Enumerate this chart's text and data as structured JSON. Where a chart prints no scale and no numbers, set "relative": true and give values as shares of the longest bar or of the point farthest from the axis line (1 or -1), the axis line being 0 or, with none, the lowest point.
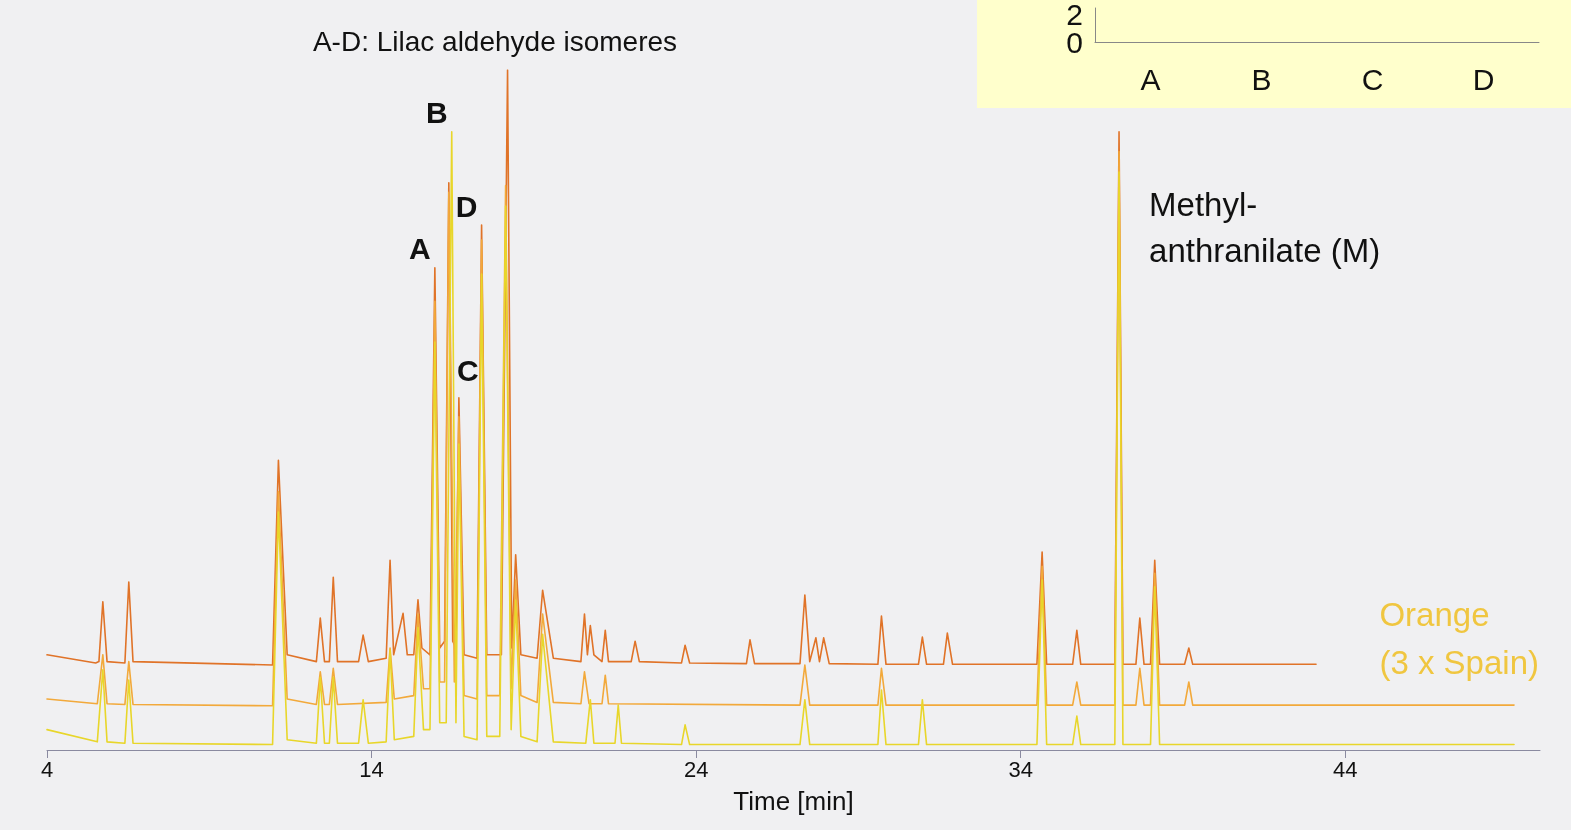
{
  "chart_data": [
    {
      "type": "line",
      "title": "A-D: Lilac aldehyde isomeres",
      "xlabel": "Time [min]",
      "relative": true,
      "xlim": [
        4,
        50
      ],
      "xticks": [
        4,
        14,
        24,
        34,
        44
      ],
      "grid": false,
      "marker": "none",
      "line_style": "solid",
      "annotations": [
        {
          "text": "A",
          "x": 15.95,
          "y": 0.709
        },
        {
          "text": "B",
          "x": 16.47,
          "y": 0.909
        },
        {
          "text": "C",
          "x": 16.69,
          "y": 0.518
        },
        {
          "text": "D",
          "x": 17.39,
          "y": 0.772
        },
        {
          "text": "Methyl-\nanthranilate (M)",
          "x": 37.03,
          "y": 0.909
        },
        "Orange\n(3 x Spain)"
      ],
      "series": [
        {
          "color": "#e07328",
          "x": [
            4,
            5.5,
            5.6,
            5.72,
            5.85,
            6.4,
            6.52,
            6.65,
            10.95,
            11.13,
            11.4,
            12.3,
            12.42,
            12.55,
            12.7,
            12.82,
            12.95,
            13.6,
            13.74,
            13.9,
            14.45,
            14.57,
            14.68,
            14.97,
            15.1,
            15.3,
            15.43,
            15.55,
            15.8,
            15.95,
            16.1,
            16.25,
            16.38,
            16.5,
            16.6,
            16.69,
            16.85,
            17.25,
            17.39,
            17.55,
            18.0,
            18.19,
            18.32,
            18.44,
            18.6,
            19.1,
            19.27,
            19.6,
            20.45,
            20.56,
            20.65,
            20.74,
            20.85,
            21.1,
            21.2,
            21.3,
            22.0,
            22.12,
            22.25,
            23.55,
            23.66,
            23.8,
            25.55,
            25.66,
            25.8,
            27.2,
            27.35,
            27.5,
            27.69,
            27.8,
            27.93,
            28.1,
            29.6,
            29.71,
            29.85,
            30.85,
            30.97,
            31.1,
            31.62,
            31.74,
            31.9,
            34.5,
            34.66,
            34.8,
            35.6,
            35.73,
            35.85,
            36.9,
            37.03,
            37.15,
            37.55,
            37.67,
            37.8,
            38.0,
            38.13,
            38.28,
            39.05,
            39.18,
            39.3,
            43.1
          ],
          "values": [
            0.14,
            0.128,
            0.13,
            0.218,
            0.13,
            0.128,
            0.247,
            0.13,
            0.125,
            0.426,
            0.14,
            0.13,
            0.194,
            0.13,
            0.13,
            0.254,
            0.13,
            0.13,
            0.169,
            0.13,
            0.135,
            0.279,
            0.14,
            0.201,
            0.14,
            0.14,
            0.221,
            0.15,
            0.14,
            0.709,
            0.15,
            0.16,
            0.834,
            0.16,
            0.15,
            0.518,
            0.14,
            0.135,
            0.772,
            0.14,
            0.14,
            1,
            0.15,
            0.287,
            0.14,
            0.135,
            0.235,
            0.135,
            0.13,
            0.2,
            0.14,
            0.183,
            0.14,
            0.13,
            0.176,
            0.13,
            0.13,
            0.16,
            0.13,
            0.128,
            0.154,
            0.128,
            0.127,
            0.162,
            0.127,
            0.127,
            0.228,
            0.13,
            0.165,
            0.13,
            0.165,
            0.127,
            0.126,
            0.197,
            0.126,
            0.126,
            0.166,
            0.126,
            0.126,
            0.172,
            0.126,
            0.126,
            0.291,
            0.126,
            0.126,
            0.176,
            0.126,
            0.126,
            0.909,
            0.126,
            0.126,
            0.194,
            0.126,
            0.126,
            0.279,
            0.126,
            0.126,
            0.15,
            0.126,
            0.126
          ]
        },
        {
          "color": "#f2a93b",
          "x": [
            4,
            5.55,
            5.72,
            5.85,
            6.4,
            6.52,
            6.65,
            10.95,
            11.13,
            11.4,
            12.3,
            12.42,
            12.55,
            12.7,
            12.82,
            12.95,
            14.45,
            14.57,
            14.7,
            15.3,
            15.43,
            15.6,
            15.8,
            15.95,
            16.1,
            16.25,
            16.38,
            16.55,
            16.69,
            16.85,
            17.25,
            17.39,
            17.55,
            17.95,
            18.13,
            18.3,
            18.44,
            18.6,
            19.1,
            19.27,
            19.6,
            20.45,
            20.56,
            20.7,
            21.1,
            21.2,
            21.3,
            27.2,
            27.35,
            27.5,
            29.6,
            29.71,
            29.85,
            34.5,
            34.66,
            34.8,
            35.6,
            35.73,
            35.85,
            36.9,
            37.03,
            37.15,
            37.55,
            37.67,
            37.8,
            38.0,
            38.13,
            38.28,
            39.05,
            39.18,
            39.3,
            49.2
          ],
          "values": [
            0.075,
            0.068,
            0.14,
            0.068,
            0.067,
            0.13,
            0.067,
            0.065,
            0.38,
            0.075,
            0.067,
            0.115,
            0.067,
            0.067,
            0.12,
            0.067,
            0.07,
            0.15,
            0.075,
            0.08,
            0.2,
            0.09,
            0.09,
            0.66,
            0.1,
            0.1,
            0.82,
            0.1,
            0.49,
            0.08,
            0.075,
            0.75,
            0.08,
            0.08,
            0.83,
            0.09,
            0.25,
            0.08,
            0.07,
            0.2,
            0.07,
            0.068,
            0.115,
            0.068,
            0.068,
            0.11,
            0.068,
            0.066,
            0.125,
            0.066,
            0.066,
            0.12,
            0.066,
            0.066,
            0.27,
            0.066,
            0.066,
            0.1,
            0.066,
            0.066,
            0.88,
            0.066,
            0.066,
            0.12,
            0.066,
            0.066,
            0.26,
            0.066,
            0.066,
            0.1,
            0.066,
            0.066
          ]
        },
        {
          "color": "#e8d62a",
          "x": [
            4,
            5.55,
            5.72,
            5.85,
            6.4,
            6.52,
            6.65,
            10.95,
            11.13,
            11.4,
            12.3,
            12.42,
            12.55,
            12.7,
            12.82,
            12.95,
            13.6,
            13.74,
            13.9,
            14.45,
            14.57,
            14.7,
            15.3,
            15.43,
            15.6,
            15.8,
            15.95,
            16.1,
            16.3,
            16.47,
            16.6,
            16.69,
            16.85,
            17.25,
            17.39,
            17.55,
            17.95,
            18.13,
            18.3,
            18.44,
            18.6,
            19.1,
            19.27,
            19.6,
            20.6,
            20.74,
            20.85,
            21.5,
            21.6,
            21.7,
            23.55,
            23.66,
            23.8,
            27.2,
            27.35,
            27.5,
            29.6,
            29.71,
            29.85,
            30.85,
            30.97,
            31.1,
            34.5,
            34.66,
            34.8,
            35.6,
            35.73,
            35.85,
            36.9,
            37.03,
            37.15,
            38.0,
            38.13,
            38.28,
            49.2
          ],
          "values": [
            0.03,
            0.012,
            0.118,
            0.012,
            0.01,
            0.103,
            0.01,
            0.008,
            0.35,
            0.015,
            0.01,
            0.107,
            0.01,
            0.01,
            0.107,
            0.01,
            0.01,
            0.074,
            0.01,
            0.012,
            0.147,
            0.015,
            0.02,
            0.18,
            0.03,
            0.03,
            0.6,
            0.04,
            0.04,
            0.909,
            0.04,
            0.45,
            0.02,
            0.015,
            0.7,
            0.02,
            0.02,
            0.8,
            0.03,
            0.22,
            0.02,
            0.012,
            0.17,
            0.012,
            0.01,
            0.074,
            0.01,
            0.01,
            0.066,
            0.01,
            0.008,
            0.037,
            0.008,
            0.008,
            0.074,
            0.008,
            0.008,
            0.088,
            0.008,
            0.008,
            0.074,
            0.008,
            0.008,
            0.25,
            0.008,
            0.008,
            0.05,
            0.008,
            0.008,
            0.85,
            0.008,
            0.008,
            0.24,
            0.008,
            0.008
          ]
        }
      ]
    },
    {
      "type": "other",
      "categories": [
        "A",
        "B",
        "C",
        "D"
      ],
      "annotations": [
        "2",
        "0"
      ]
    }
  ]
}
